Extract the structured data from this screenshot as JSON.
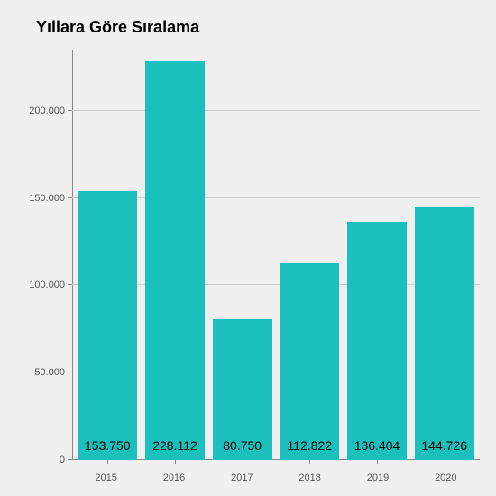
{
  "chart": {
    "type": "bar",
    "title": "Yıllara Göre Sıralama",
    "title_fontsize": 18,
    "title_fontweight": "bold",
    "background_color": "#f0f0f0",
    "bar_color": "#1bc0bd",
    "grid_color": "#cccccc",
    "axis_color": "#888888",
    "label_color": "#555555",
    "value_label_color": "#000000",
    "value_label_fontsize": 14,
    "tick_label_fontsize": 11,
    "categories": [
      "2015",
      "2016",
      "2017",
      "2018",
      "2019",
      "2020"
    ],
    "values": [
      153750,
      228112,
      80750,
      112822,
      136404,
      144726
    ],
    "value_labels": [
      "153.750",
      "228.112",
      "80.750",
      "112.822",
      "136.404",
      "144.726"
    ],
    "ylim": [
      0,
      235000
    ],
    "yticks": [
      0,
      50000,
      100000,
      150000,
      200000
    ],
    "ytick_labels": [
      "0",
      "50.000",
      "100.000",
      "150.000",
      "200.000"
    ],
    "bar_width_ratio": 0.88
  }
}
